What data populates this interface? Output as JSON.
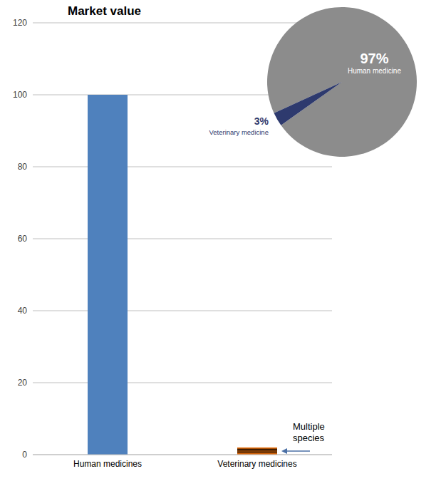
{
  "chart_data": [
    {
      "type": "bar",
      "title": "Market value",
      "categories": [
        "Human medicines",
        "Veterinary medicines"
      ],
      "values": [
        100,
        2
      ],
      "colors": [
        "#4f81bd",
        "#e46c0a"
      ],
      "ylim": [
        0,
        120
      ],
      "yticks": [
        0,
        20,
        40,
        60,
        80,
        100,
        120
      ],
      "grid": true,
      "annotation": {
        "text": "Multiple species",
        "category": "Veterinary medicines"
      }
    },
    {
      "type": "pie",
      "categories": [
        "Human medicine",
        "Veterinary medicine"
      ],
      "values": [
        97,
        3
      ],
      "value_labels": [
        "97%",
        "3%"
      ],
      "colors": [
        "#8c8c8c",
        "#2e3a6e"
      ],
      "data_labels": true
    }
  ]
}
